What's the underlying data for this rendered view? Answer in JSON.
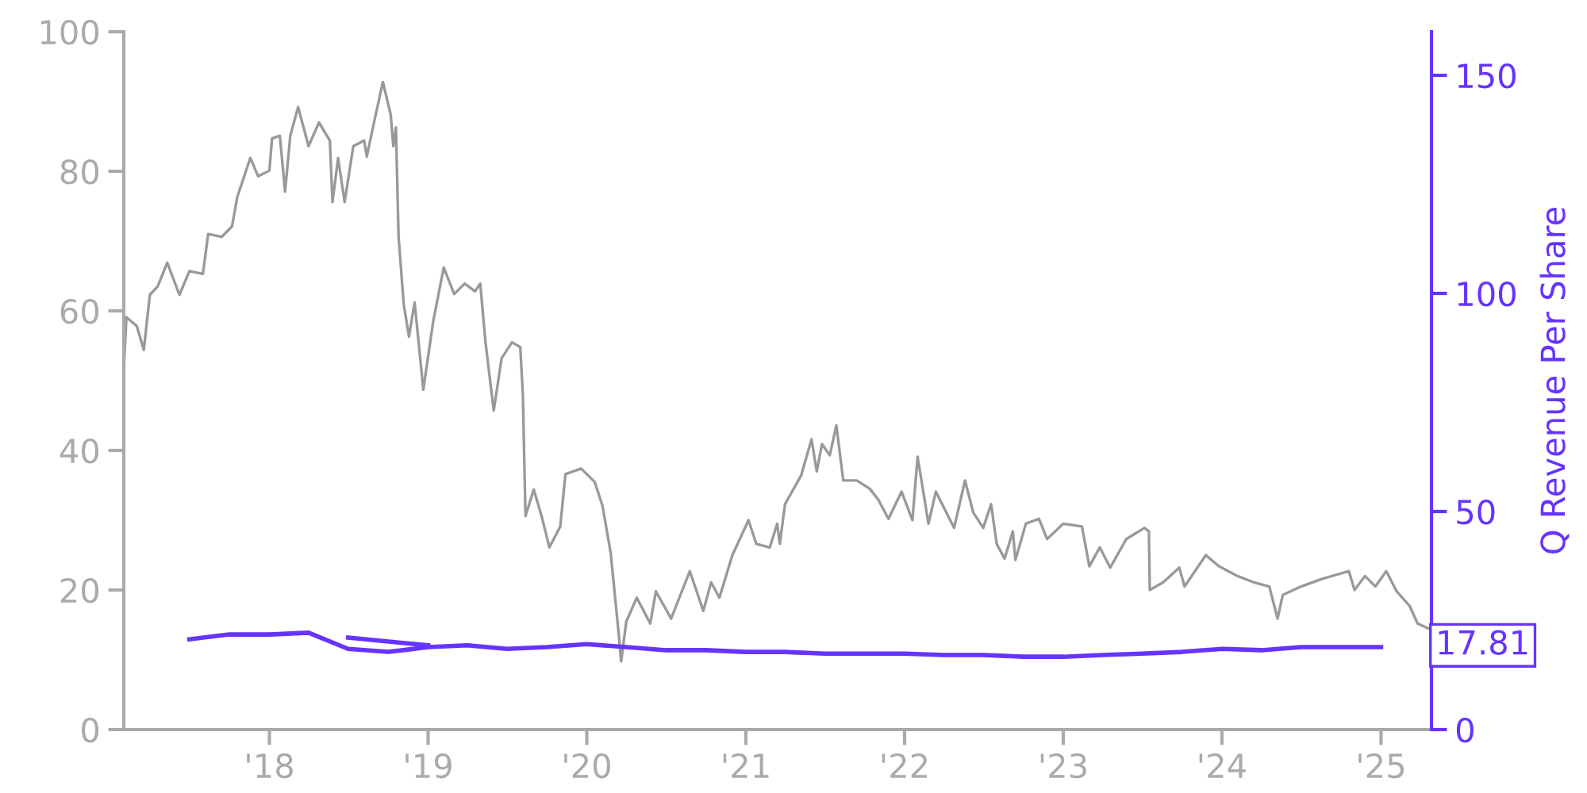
{
  "chart_data": {
    "type": "line",
    "xlim": [
      "2017-01-31",
      "2025-04-27"
    ],
    "xticks": [
      {
        "value": "2018-01-01",
        "label": "'18"
      },
      {
        "value": "2019-01-01",
        "label": "'19"
      },
      {
        "value": "2020-01-01",
        "label": "'20"
      },
      {
        "value": "2021-01-01",
        "label": "'21"
      },
      {
        "value": "2022-01-01",
        "label": "'22"
      },
      {
        "value": "2023-01-01",
        "label": "'23"
      },
      {
        "value": "2024-01-01",
        "label": "'24"
      },
      {
        "value": "2025-01-01",
        "label": "'25"
      }
    ],
    "ylim": [
      0,
      100
    ],
    "yticks": [
      0,
      20,
      40,
      60,
      80,
      100
    ],
    "y2lim": [
      0,
      160
    ],
    "y2ticks": [
      0,
      50,
      100,
      150
    ],
    "y2label": "Q Revenue Per Share",
    "annotations": [
      "17.81"
    ],
    "grid": false,
    "marker": "none",
    "line_style": "solid",
    "series": [
      {
        "color": "#999999",
        "x": [
          "2017-01-31",
          "2017-02-06",
          "2017-03-02",
          "2017-03-18",
          "2017-04-01",
          "2017-04-19",
          "2017-05-11",
          "2017-06-08",
          "2017-07-01",
          "2017-08-01",
          "2017-08-13",
          "2017-09-13",
          "2017-10-07",
          "2017-10-19",
          "2017-11-18",
          "2017-12-06",
          "2018-01-01",
          "2018-01-07",
          "2018-01-25",
          "2018-02-06",
          "2018-02-18",
          "2018-03-08",
          "2018-04-01",
          "2018-04-25",
          "2018-05-20",
          "2018-05-26",
          "2018-06-08",
          "2018-06-23",
          "2018-07-13",
          "2018-08-07",
          "2018-08-13",
          "2018-09-01",
          "2018-09-19",
          "2018-10-07",
          "2018-10-13",
          "2018-10-19",
          "2018-10-25",
          "2018-11-06",
          "2018-11-18",
          "2018-12-01",
          "2018-12-21",
          "2019-01-13",
          "2019-02-06",
          "2019-03-02",
          "2019-03-26",
          "2019-04-19",
          "2019-05-01",
          "2019-05-13",
          "2019-06-01",
          "2019-06-19",
          "2019-07-13",
          "2019-08-01",
          "2019-08-07",
          "2019-08-13",
          "2019-09-01",
          "2019-09-19",
          "2019-10-07",
          "2019-11-01",
          "2019-11-13",
          "2019-12-19",
          "2020-01-19",
          "2020-02-06",
          "2020-02-25",
          "2020-03-14",
          "2020-03-20",
          "2020-04-01",
          "2020-04-25",
          "2020-05-26",
          "2020-06-08",
          "2020-07-13",
          "2020-08-25",
          "2020-09-25",
          "2020-10-13",
          "2020-11-01",
          "2020-12-01",
          "2021-01-07",
          "2021-01-25",
          "2021-02-25",
          "2021-03-14",
          "2021-03-20",
          "2021-04-01",
          "2021-05-08",
          "2021-06-01",
          "2021-06-13",
          "2021-06-25",
          "2021-07-13",
          "2021-07-28",
          "2021-08-13",
          "2021-09-13",
          "2021-10-13",
          "2021-11-01",
          "2021-11-25",
          "2021-12-25",
          "2022-01-19",
          "2022-01-31",
          "2022-02-25",
          "2022-03-14",
          "2022-04-25",
          "2022-05-20",
          "2022-06-08",
          "2022-07-01",
          "2022-07-19",
          "2022-08-01",
          "2022-08-19",
          "2022-09-07",
          "2022-09-13",
          "2022-10-07",
          "2022-11-06",
          "2022-11-25",
          "2023-01-01",
          "2023-02-13",
          "2023-03-02",
          "2023-03-26",
          "2023-04-19",
          "2023-05-26",
          "2023-07-07",
          "2023-07-17",
          "2023-07-19",
          "2023-08-19",
          "2023-09-25",
          "2023-10-07",
          "2023-11-25",
          "2023-12-25",
          "2024-02-06",
          "2024-03-14",
          "2024-04-19",
          "2024-05-08",
          "2024-05-20",
          "2024-07-01",
          "2024-08-19",
          "2024-10-19",
          "2024-11-01",
          "2024-11-25",
          "2024-12-19",
          "2025-01-13",
          "2025-02-06",
          "2025-03-08",
          "2025-03-26",
          "2025-04-19"
        ],
        "values": [
          51.6,
          59.1,
          57.8,
          54.4,
          62.3,
          63.5,
          66.9,
          62.3,
          65.7,
          65.3,
          71.0,
          70.6,
          72.1,
          76.3,
          81.9,
          79.3,
          80.1,
          84.7,
          85.1,
          77.1,
          85.1,
          89.2,
          83.6,
          87.0,
          84.4,
          75.6,
          81.9,
          75.6,
          83.6,
          84.4,
          82.1,
          87.7,
          92.8,
          88.1,
          83.6,
          86.3,
          70.7,
          60.9,
          56.3,
          61.2,
          48.7,
          58.6,
          66.2,
          62.4,
          63.9,
          62.8,
          63.9,
          55.5,
          45.7,
          53.2,
          55.5,
          54.8,
          48.0,
          30.6,
          34.4,
          30.6,
          26.1,
          29.1,
          36.6,
          37.4,
          35.5,
          32.1,
          25.3,
          14.0,
          9.8,
          15.5,
          18.9,
          15.2,
          19.8,
          15.9,
          22.7,
          17.0,
          21.1,
          18.9,
          25.0,
          30.0,
          26.6,
          26.1,
          29.5,
          26.6,
          32.3,
          36.4,
          41.6,
          37.0,
          40.9,
          39.3,
          43.6,
          35.7,
          35.7,
          34.5,
          33.0,
          30.2,
          34.1,
          30.0,
          39.1,
          29.5,
          34.1,
          28.9,
          35.7,
          31.1,
          28.9,
          32.3,
          26.6,
          24.5,
          28.4,
          24.3,
          29.5,
          30.2,
          27.3,
          29.5,
          29.1,
          23.4,
          26.1,
          23.2,
          27.3,
          28.9,
          28.4,
          20.0,
          21.1,
          23.2,
          20.5,
          25.0,
          23.4,
          22.0,
          21.1,
          20.5,
          15.9,
          19.3,
          20.5,
          21.6,
          22.7,
          20.0,
          22.0,
          20.5,
          22.7,
          19.8,
          17.7,
          15.2,
          14.5
        ]
      },
      {
        "color": "#6633ff",
        "axis": "y2",
        "x": [
          "2017-07-01",
          "2017-10-01",
          "2018-01-01",
          "2018-04-01",
          "2018-07-01",
          "2018-10-01",
          "2019-01-01",
          "2019-04-01",
          "2019-07-01",
          "2019-10-01",
          "2020-01-01",
          "2020-04-01",
          "2020-07-01",
          "2020-10-01",
          "2021-01-01",
          "2021-04-01",
          "2021-07-01",
          "2021-10-01",
          "2022-01-01",
          "2022-04-01",
          "2022-07-01",
          "2022-10-01",
          "2023-01-01",
          "2023-04-01",
          "2023-07-01",
          "2023-10-01",
          "2024-01-01",
          "2024-04-01",
          "2024-07-01",
          "2024-10-01",
          "2025-01-01"
        ],
        "values": [
          20.7,
          21.8,
          21.8,
          22.2,
          18.5,
          17.8,
          18.9,
          19.3,
          18.5,
          18.9,
          19.6,
          18.9,
          18.2,
          18.2,
          17.8,
          17.8,
          17.4,
          17.4,
          17.4,
          17.1,
          17.1,
          16.7,
          16.7,
          17.1,
          17.4,
          17.8,
          18.5,
          18.2,
          18.9,
          18.9,
          18.9
        ]
      },
      {
        "color": "#6633ff",
        "axis": "y2",
        "x": [
          "2018-07-01",
          "2019-01-01"
        ],
        "values": [
          21.1,
          19.3
        ]
      }
    ]
  }
}
